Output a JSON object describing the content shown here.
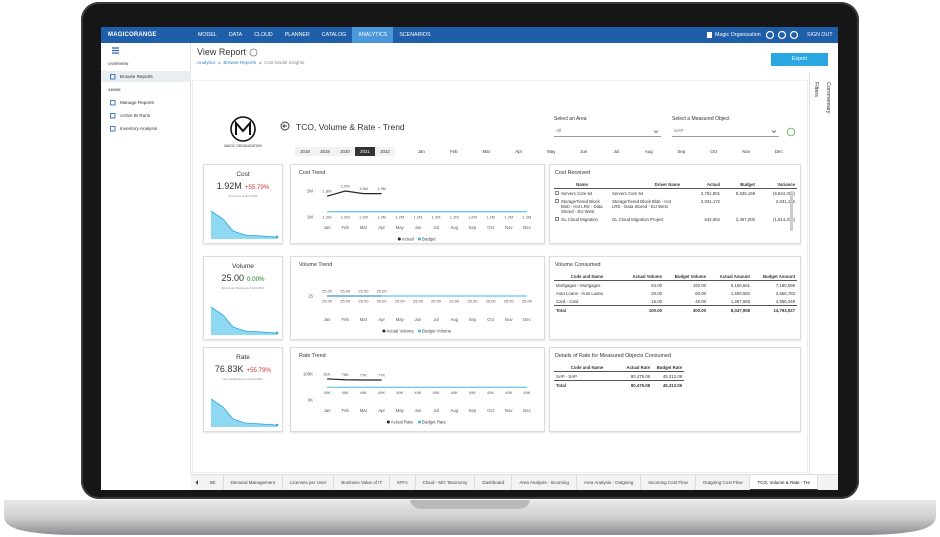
{
  "nav": {
    "brand": "MAGICORANGE",
    "items": [
      "MODEL",
      "DATA",
      "CLOUD",
      "PLANNER",
      "CATALOG",
      "ANALYTICS",
      "SCENARIOS"
    ],
    "active": 5,
    "organization": "Magic Organization",
    "sign_out": "SIGN OUT"
  },
  "sidebar": {
    "sections": [
      {
        "label": "OVERVIEW",
        "items": [
          "Browse Reports"
        ]
      },
      {
        "label": "ADMIN",
        "items": [
          "Manage Reports",
          "Active BI Runs",
          "Inventory Analysis"
        ]
      }
    ]
  },
  "header": {
    "title": "View Report",
    "breadcrumb": [
      "Analytics",
      "Browse Reports",
      "Cost Model Insights"
    ],
    "export": "Export"
  },
  "side_panel": {
    "filters": "Filters",
    "commentary": "Commentary"
  },
  "report": {
    "logo": "MAGIC ORGANIZATION",
    "title": "TCO, Volume & Rate - Trend",
    "area": {
      "label": "Select an Area",
      "value": "All"
    },
    "measured_object": {
      "label": "Select a Measured Object",
      "value": "SAP"
    },
    "years": [
      "2018",
      "2019",
      "2020",
      "2021",
      "2022"
    ],
    "selected_year": 3,
    "months": [
      "Jan",
      "Feb",
      "Mar",
      "Apr",
      "May",
      "Jun",
      "Jul",
      "Aug",
      "Sep",
      "Oct",
      "Nov",
      "Dec"
    ]
  },
  "kpis": [
    {
      "title": "Cost",
      "value": "1.92M",
      "change": "+55.79%",
      "change_color": "#d13438",
      "note": "Annual as of April 2021"
    },
    {
      "title": "Volume",
      "value": "25.00",
      "change": "0.00%",
      "change_color": "#107c10",
      "note": "EC Actual Volume as of April 2021"
    },
    {
      "title": "Rate",
      "value": "76.83K",
      "change": "+55.79%",
      "change_color": "#d13438",
      "note": "EC Actual Rate as of April 2021"
    }
  ],
  "trends": [
    {
      "type": "line",
      "title": "Cost Trend",
      "categories": [
        "Jan",
        "Feb",
        "Mar",
        "Apr",
        "May",
        "Jun",
        "Jul",
        "Aug",
        "Sep",
        "Oct",
        "Nov",
        "Dec"
      ],
      "ylim": [
        1000000,
        2000000
      ],
      "yticks": [
        {
          "value": 2000000,
          "label": "2M"
        },
        {
          "value": 1000000,
          "label": "1M"
        }
      ],
      "series": [
        {
          "name": "Actual",
          "color": "#252423",
          "values": [
            1800000,
            2000000,
            1900000,
            1900000,
            null,
            null,
            null,
            null,
            null,
            null,
            null,
            null
          ],
          "value_labels": [
            "1.8M",
            "2.0M",
            "1.9M",
            "1.9M",
            null,
            null,
            null,
            null,
            null,
            null,
            null,
            null
          ]
        },
        {
          "name": "Budget",
          "color": "#41b6e6",
          "values": [
            1200000,
            1200000,
            1200000,
            1200000,
            1200000,
            1200000,
            1200000,
            1200000,
            1200000,
            1200000,
            1200000,
            1200000
          ],
          "value_labels": [
            "1.2M",
            "1.2M",
            "1.2M",
            "1.2M",
            "1.2M",
            "1.2M",
            "1.2M",
            "1.2M",
            "1.2M",
            "1.2M",
            "1.2M",
            "1.2M"
          ]
        }
      ]
    },
    {
      "type": "line",
      "title": "Volume Trend",
      "categories": [
        "Jan",
        "Feb",
        "Mar",
        "Apr",
        "May",
        "Jun",
        "Jul",
        "Aug",
        "Sep",
        "Oct",
        "Nov",
        "Dec"
      ],
      "ylim": [
        24,
        26
      ],
      "yticks": [
        25
      ],
      "series": [
        {
          "name": "Actual Volume",
          "color": "#252423",
          "values": [
            25,
            25,
            25,
            25,
            null,
            null,
            null,
            null,
            null,
            null,
            null,
            null
          ],
          "value_labels": [
            "25.00",
            "25.00",
            "25.00",
            "25.00",
            null,
            null,
            null,
            null,
            null,
            null,
            null,
            null
          ]
        },
        {
          "name": "Budget Volume",
          "color": "#41b6e6",
          "values": [
            25,
            25,
            25,
            25,
            25,
            25,
            25,
            25,
            25,
            25,
            25,
            25
          ],
          "value_labels": [
            "25.00",
            "25.00",
            "25.00",
            "25.00",
            "25.00",
            "25.00",
            "25.00",
            "25.00",
            "25.00",
            "25.00",
            "25.00",
            "25.00"
          ]
        }
      ]
    },
    {
      "type": "line",
      "title": "Rate Trend",
      "categories": [
        "Jan",
        "Feb",
        "Mar",
        "Apr",
        "May",
        "Jun",
        "Jul",
        "Aug",
        "Sep",
        "Oct",
        "Nov",
        "Dec"
      ],
      "ylim": [
        0,
        100000
      ],
      "yticks": [
        {
          "value": 100000,
          "label": "100K"
        },
        {
          "value": 0,
          "label": "0K"
        }
      ],
      "series": [
        {
          "name": "Actual Rate",
          "color": "#252423",
          "values": [
            81000,
            78000,
            77000,
            77000,
            null,
            null,
            null,
            null,
            null,
            null,
            null,
            null
          ],
          "value_labels": [
            "81K",
            "78K",
            "77K",
            "77K",
            null,
            null,
            null,
            null,
            null,
            null,
            null,
            null
          ]
        },
        {
          "name": "Budget Rate",
          "color": "#41b6e6",
          "values": [
            49000,
            49000,
            49000,
            49000,
            49000,
            49000,
            49000,
            49000,
            49000,
            49000,
            49000,
            49000
          ],
          "value_labels": [
            "49K",
            "49K",
            "49K",
            "49K",
            "49K",
            "49K",
            "49K",
            "49K",
            "49K",
            "49K",
            "49K",
            "49K"
          ]
        }
      ]
    }
  ],
  "tables": [
    {
      "title": "Cost Received",
      "columns": [
        "Name",
        "Driver Name",
        "Actual",
        "Budget",
        "Variance"
      ],
      "total_row": false,
      "rows": [
        [
          "Servers Core 64",
          "Servers Core 64",
          "2,791,801",
          "8,636,169",
          "(5,844,368)"
        ],
        [
          "StorageTiered Block Blob - Hot LRS - Data Stored - EU West",
          "StorageTiered Block Blob - Hot LRS - Data Stored - EU West",
          "2,031,172",
          null,
          "2,031,172"
        ],
        [
          "GL Cloud Migration",
          "GL Cloud Migration Project",
          "642,662",
          "2,457,000",
          "(1,814,338)"
        ]
      ]
    },
    {
      "title": "Volume Consumed",
      "columns": [
        "Code and Name",
        "Actual Volume",
        "Budget Volume",
        "Actual Amount",
        "Budget Amount"
      ],
      "total_row": true,
      "rows": [
        [
          "Mortgages - Mortgages",
          "64.00",
          "192.00",
          "5,150,661",
          "7,180,596"
        ],
        [
          "Auto Loans - Auto Loans",
          "20.00",
          "60.00",
          "1,609,582",
          "2,656,783"
        ],
        [
          "Card - Card",
          "16.00",
          "48.00",
          "1,287,665",
          "4,956,348"
        ],
        [
          "Total",
          "100.00",
          "300.00",
          "8,047,908",
          "14,793,927"
        ]
      ]
    },
    {
      "title": "Details of Rate for Measured Objects Consumed",
      "columns": [
        "Code and Name",
        "Actual Rate",
        "Budget Rate"
      ],
      "total_row": true,
      "rows": [
        [
          "SAP - SAP",
          "80,479.08",
          "49,313.09"
        ],
        [
          "Total",
          "80,479.08",
          "49,313.09"
        ]
      ]
    }
  ],
  "tabs": {
    "items": [
      "BII",
      "Demand Management",
      "Licenses per User",
      "Business Value of IT",
      "KPI's",
      "Cloud - MO Taxonomy",
      "Dashboard",
      "Area Analysis - Incoming",
      "Area Analysis - Outgoing",
      "Incoming Cost Flow",
      "Outgoing Cost Flow",
      "TCO, Volume & Rate - Tre"
    ],
    "active": 11
  }
}
